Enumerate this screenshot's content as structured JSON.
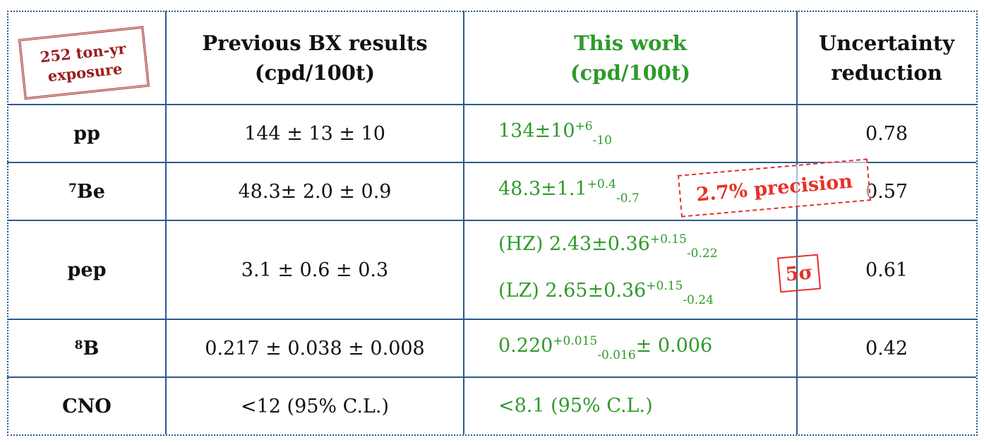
{
  "stamp": {
    "line1": "252 ton-yr",
    "line2": "exposure"
  },
  "header": {
    "previous": [
      "Previous BX results",
      "(cpd/100t)"
    ],
    "this_work": [
      "This work",
      "(cpd/100t)"
    ],
    "reduction": [
      "Uncertainty",
      "reduction"
    ]
  },
  "rows": [
    {
      "label": "pp",
      "previous": "144 ± 13 ± 10",
      "this_work": [
        {
          "main": "134±10",
          "sup": "+6",
          "sub": "-10"
        }
      ],
      "reduction": "0.78"
    },
    {
      "label_sup": "7",
      "label": "Be",
      "previous": "48.3± 2.0 ± 0.9",
      "this_work": [
        {
          "main": "48.3±1.1",
          "sup": "+0.4",
          "sub": "-0.7"
        }
      ],
      "reduction": "0.57"
    },
    {
      "label": "pep",
      "previous": "3.1 ± 0.6 ± 0.3",
      "this_work": [
        {
          "main": "(HZ) 2.43±0.36",
          "sup": "+0.15",
          "sub": "-0.22"
        },
        {
          "main": "(LZ) 2.65±0.36",
          "sup": "+0.15",
          "sub": "-0.24"
        }
      ],
      "reduction": "0.61"
    },
    {
      "label_sup": "8",
      "label": "B",
      "previous": "0.217 ± 0.038 ± 0.008",
      "this_work": [
        {
          "main": "0.220",
          "sup": "+0.015",
          "sub": "-0.016",
          "tail": "± 0.006"
        }
      ],
      "reduction": "0.42"
    },
    {
      "label": "CNO",
      "previous": "<12 (95% C.L.)",
      "this_work": [
        {
          "main": "<8.1 (95% C.L.)"
        }
      ]
    }
  ],
  "annotations": {
    "precision": "2.7% precision",
    "significance": "5σ"
  }
}
